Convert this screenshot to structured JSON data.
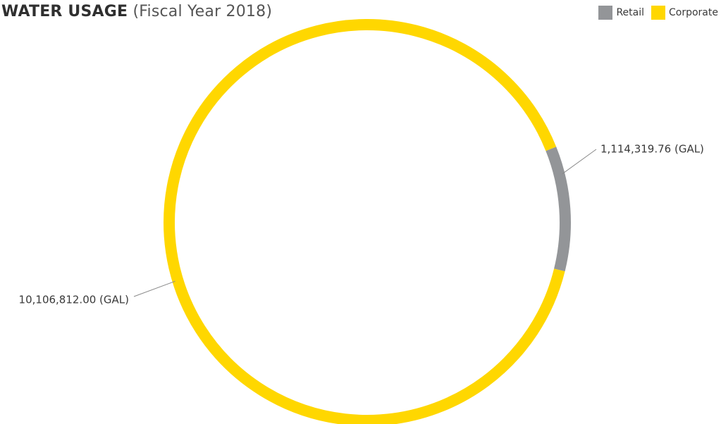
{
  "chart_data": {
    "type": "pie",
    "title": "WATER USAGE",
    "subtitle": "(Fiscal Year 2018)",
    "categories": [
      "Retail",
      "Corporate"
    ],
    "values": [
      1114319.76,
      10106812.0
    ],
    "data_labels": [
      "1,114,319.76 (GAL)",
      "10,106,812.00 (GAL)"
    ],
    "colors": [
      "#939598",
      "#FFD700"
    ],
    "legend_position": "top-right",
    "style": "donut-ring"
  }
}
